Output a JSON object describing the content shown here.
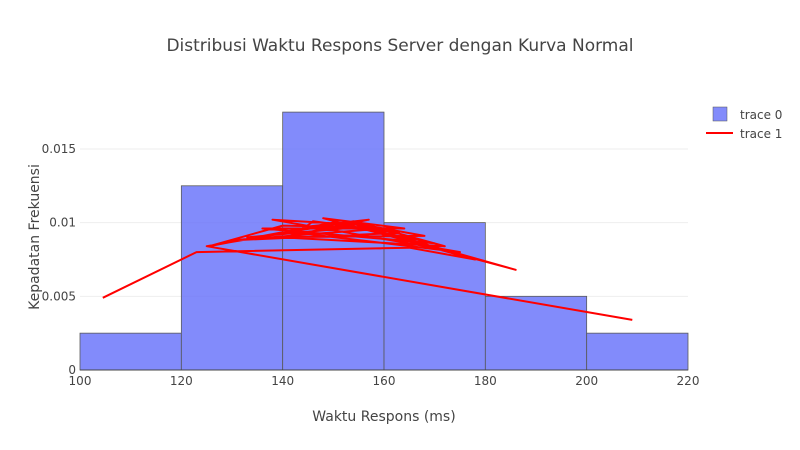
{
  "chart_data": {
    "type": "bar",
    "title": "Distribusi Waktu Respons Server dengan Kurva Normal",
    "xlabel": "Waktu Respons (ms)",
    "ylabel": "Kepadatan Frekuensi",
    "xlim": [
      100,
      220
    ],
    "ylim": [
      0,
      0.019
    ],
    "x_ticks": [
      {
        "value": 100,
        "label": "100"
      },
      {
        "value": 120,
        "label": "120"
      },
      {
        "value": 140,
        "label": "140"
      },
      {
        "value": 160,
        "label": "160"
      },
      {
        "value": 180,
        "label": "180"
      },
      {
        "value": 200,
        "label": "200"
      },
      {
        "value": 220,
        "label": "220"
      }
    ],
    "y_ticks": [
      {
        "value": 0,
        "label": "0"
      },
      {
        "value": 0.005,
        "label": "0.005"
      },
      {
        "value": 0.01,
        "label": "0.01"
      },
      {
        "value": 0.015,
        "label": "0.015"
      }
    ],
    "grid": true,
    "legend_position": "top-right",
    "series": [
      {
        "name": "trace 0",
        "kind": "histogram",
        "color": "#636efa",
        "bins": [
          {
            "x0": 100,
            "x1": 120,
            "value": 0.0025
          },
          {
            "x0": 120,
            "x1": 140,
            "value": 0.0125
          },
          {
            "x0": 140,
            "x1": 160,
            "value": 0.0175
          },
          {
            "x0": 160,
            "x1": 180,
            "value": 0.01
          },
          {
            "x0": 180,
            "x1": 200,
            "value": 0.005
          },
          {
            "x0": 200,
            "x1": 220,
            "value": 0.0025
          }
        ]
      },
      {
        "name": "trace 1",
        "kind": "line",
        "color": "#ff0000",
        "points": [
          {
            "x": 104.5,
            "y": 0.0049
          },
          {
            "x": 123,
            "y": 0.008
          },
          {
            "x": 165,
            "y": 0.0083
          },
          {
            "x": 178,
            "y": 0.0075
          },
          {
            "x": 155,
            "y": 0.0097
          },
          {
            "x": 140,
            "y": 0.0098
          },
          {
            "x": 125.5,
            "y": 0.0084
          },
          {
            "x": 150,
            "y": 0.01
          },
          {
            "x": 170,
            "y": 0.0086
          },
          {
            "x": 136,
            "y": 0.0096
          },
          {
            "x": 160,
            "y": 0.0096
          },
          {
            "x": 130,
            "y": 0.0088
          },
          {
            "x": 163,
            "y": 0.0093
          },
          {
            "x": 146,
            "y": 0.0101
          },
          {
            "x": 143,
            "y": 0.0093
          },
          {
            "x": 175,
            "y": 0.008
          },
          {
            "x": 138,
            "y": 0.0102
          },
          {
            "x": 158,
            "y": 0.0098
          },
          {
            "x": 133,
            "y": 0.009
          },
          {
            "x": 168,
            "y": 0.0091
          },
          {
            "x": 152,
            "y": 0.0101
          },
          {
            "x": 186,
            "y": 0.0068
          },
          {
            "x": 148,
            "y": 0.0103
          },
          {
            "x": 164,
            "y": 0.0096
          },
          {
            "x": 144,
            "y": 0.0097
          },
          {
            "x": 157,
            "y": 0.0102
          },
          {
            "x": 140,
            "y": 0.009
          },
          {
            "x": 172,
            "y": 0.0084
          },
          {
            "x": 154,
            "y": 0.0101
          },
          {
            "x": 125,
            "y": 0.0084
          },
          {
            "x": 209,
            "y": 0.0034
          }
        ]
      }
    ]
  }
}
